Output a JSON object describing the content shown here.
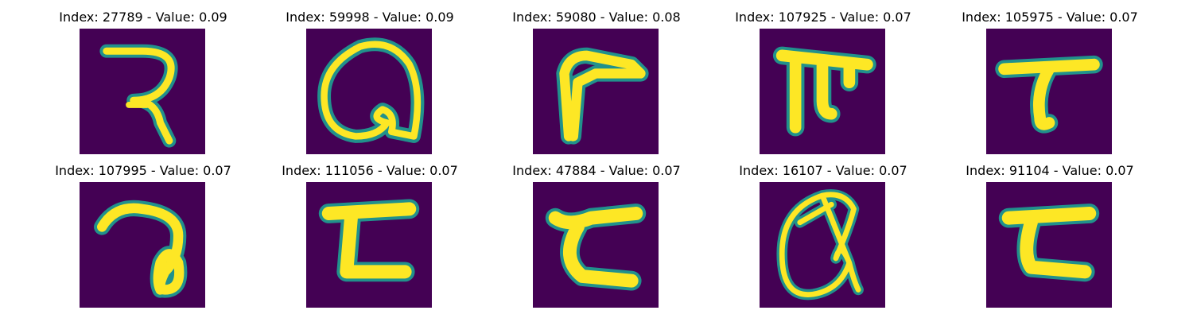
{
  "colors": {
    "background": "#440154",
    "stroke_core": "#fde725",
    "stroke_edge": "#21918c"
  },
  "panels": [
    {
      "title": "Index: 27789 - Value: 0.09",
      "image": "glyph-27789-image"
    },
    {
      "title": "Index: 59998 - Value: 0.09",
      "image": "glyph-59998-image"
    },
    {
      "title": "Index: 59080 - Value: 0.08",
      "image": "glyph-59080-image"
    },
    {
      "title": "Index: 107925 - Value: 0.07",
      "image": "glyph-107925-image"
    },
    {
      "title": "Index: 105975 - Value: 0.07",
      "image": "glyph-105975-image"
    },
    {
      "title": "Index: 107995 - Value: 0.07",
      "image": "glyph-107995-image"
    },
    {
      "title": "Index: 111056 - Value: 0.07",
      "image": "glyph-111056-image"
    },
    {
      "title": "Index: 47884 - Value: 0.07",
      "image": "glyph-47884-image"
    },
    {
      "title": "Index: 16107 - Value: 0.07",
      "image": "glyph-16107-image"
    },
    {
      "title": "Index: 91104 - Value: 0.07",
      "image": "glyph-91104-image"
    }
  ]
}
